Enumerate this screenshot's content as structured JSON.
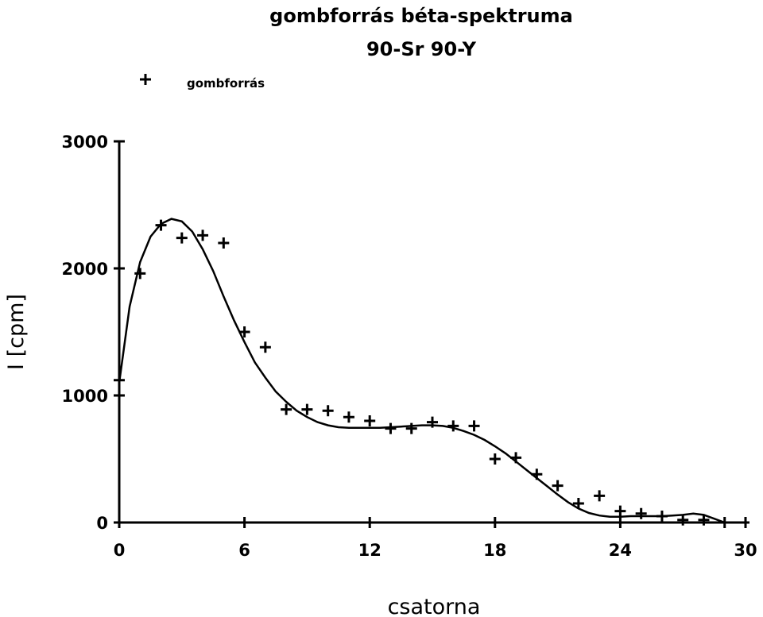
{
  "chart_data": {
    "type": "scatter",
    "title": "gombforrás béta-spektruma",
    "subtitle": "90-Sr 90-Y",
    "xlabel": "csatorna",
    "ylabel": "I [cpm]",
    "xlim": [
      0,
      30
    ],
    "ylim": [
      0,
      3000
    ],
    "xticks": [
      0,
      6,
      12,
      18,
      24,
      30
    ],
    "yticks": [
      0,
      1000,
      2000,
      3000
    ],
    "grid": false,
    "legend_position": "top-left",
    "series": [
      {
        "name": "gombforrás",
        "marker": "+",
        "x": [
          0,
          1,
          2,
          3,
          4,
          5,
          6,
          7,
          8,
          9,
          10,
          11,
          12,
          13,
          14,
          15,
          16,
          17,
          18,
          19,
          20,
          21,
          22,
          23,
          24,
          25,
          26,
          27,
          28,
          29
        ],
        "y": [
          1120,
          1960,
          2340,
          2240,
          2260,
          2200,
          1500,
          1380,
          890,
          890,
          880,
          830,
          800,
          740,
          740,
          790,
          760,
          760,
          500,
          510,
          380,
          290,
          150,
          210,
          90,
          70,
          50,
          20,
          20,
          0
        ]
      }
    ],
    "fit_curve": {
      "x": [
        0,
        0.5,
        1,
        1.5,
        2,
        2.5,
        3,
        3.5,
        4,
        4.5,
        5,
        5.5,
        6,
        6.5,
        7,
        7.5,
        8,
        8.5,
        9,
        9.5,
        10,
        10.5,
        11,
        11.5,
        12,
        12.5,
        13,
        13.5,
        14,
        14.5,
        15,
        15.5,
        16,
        16.5,
        17,
        17.5,
        18,
        18.5,
        19,
        19.5,
        20,
        20.5,
        21,
        21.5,
        22,
        22.5,
        23,
        23.5,
        24,
        24.5,
        25,
        25.5,
        26,
        26.5,
        27,
        27.5,
        28,
        28.5,
        29
      ],
      "y": [
        1100,
        1700,
        2050,
        2250,
        2350,
        2390,
        2370,
        2290,
        2150,
        1980,
        1780,
        1590,
        1420,
        1260,
        1140,
        1030,
        950,
        880,
        830,
        790,
        765,
        750,
        745,
        745,
        745,
        745,
        750,
        755,
        760,
        765,
        765,
        760,
        745,
        720,
        690,
        650,
        600,
        545,
        480,
        415,
        350,
        285,
        220,
        160,
        110,
        75,
        55,
        45,
        45,
        50,
        50,
        50,
        50,
        55,
        60,
        70,
        60,
        30,
        0
      ]
    }
  }
}
